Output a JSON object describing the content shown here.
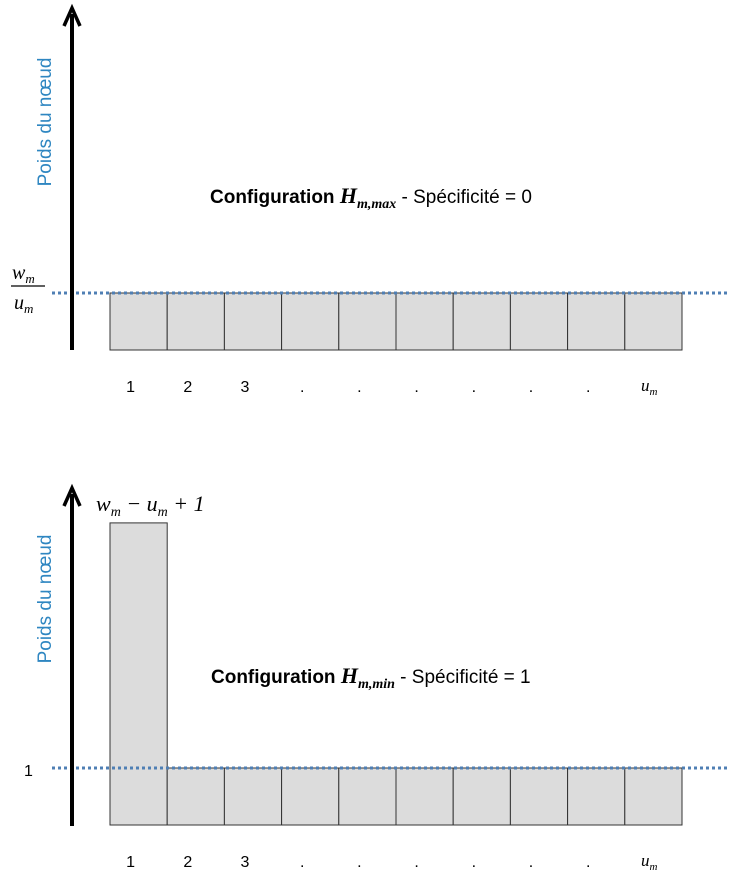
{
  "colors": {
    "axis_title": "#2e86c1",
    "box_fill": "#dcdcdc",
    "box_stroke": "#333333",
    "dotted_line": "#4f7fb4"
  },
  "top": {
    "axis_title": "Poids du nœud",
    "level_label": {
      "numerator_var": "w",
      "numerator_sub": "m",
      "denominator_var": "u",
      "denominator_sub": "m"
    },
    "config": {
      "word": "Configuration",
      "symbol": "H",
      "symbol_sub": "m,max",
      "rest": " - Spécificité = 0"
    },
    "ticks": [
      "1",
      "2",
      "3",
      ".",
      ".",
      ".",
      ".",
      ".",
      "."
    ],
    "last_tick": {
      "var": "u",
      "sub": "m"
    },
    "bar_heights": [
      1,
      1,
      1,
      1,
      1,
      1,
      1,
      1,
      1,
      1
    ]
  },
  "bottom": {
    "axis_title": "Poids du nœud",
    "peak_label": {
      "var1": "w",
      "sub1": "m",
      "op1": " − ",
      "var2": "u",
      "sub2": "m",
      "tail": " + 1"
    },
    "level_label": "1",
    "config": {
      "word": "Configuration",
      "symbol": "H",
      "symbol_sub": "m,min",
      "rest": " - Spécificité = 1"
    },
    "ticks": [
      "1",
      "2",
      "3",
      ".",
      ".",
      ".",
      ".",
      ".",
      "."
    ],
    "last_tick": {
      "var": "u",
      "sub": "m"
    },
    "bar_heights": [
      5.3,
      1,
      1,
      1,
      1,
      1,
      1,
      1,
      1,
      1
    ]
  }
}
